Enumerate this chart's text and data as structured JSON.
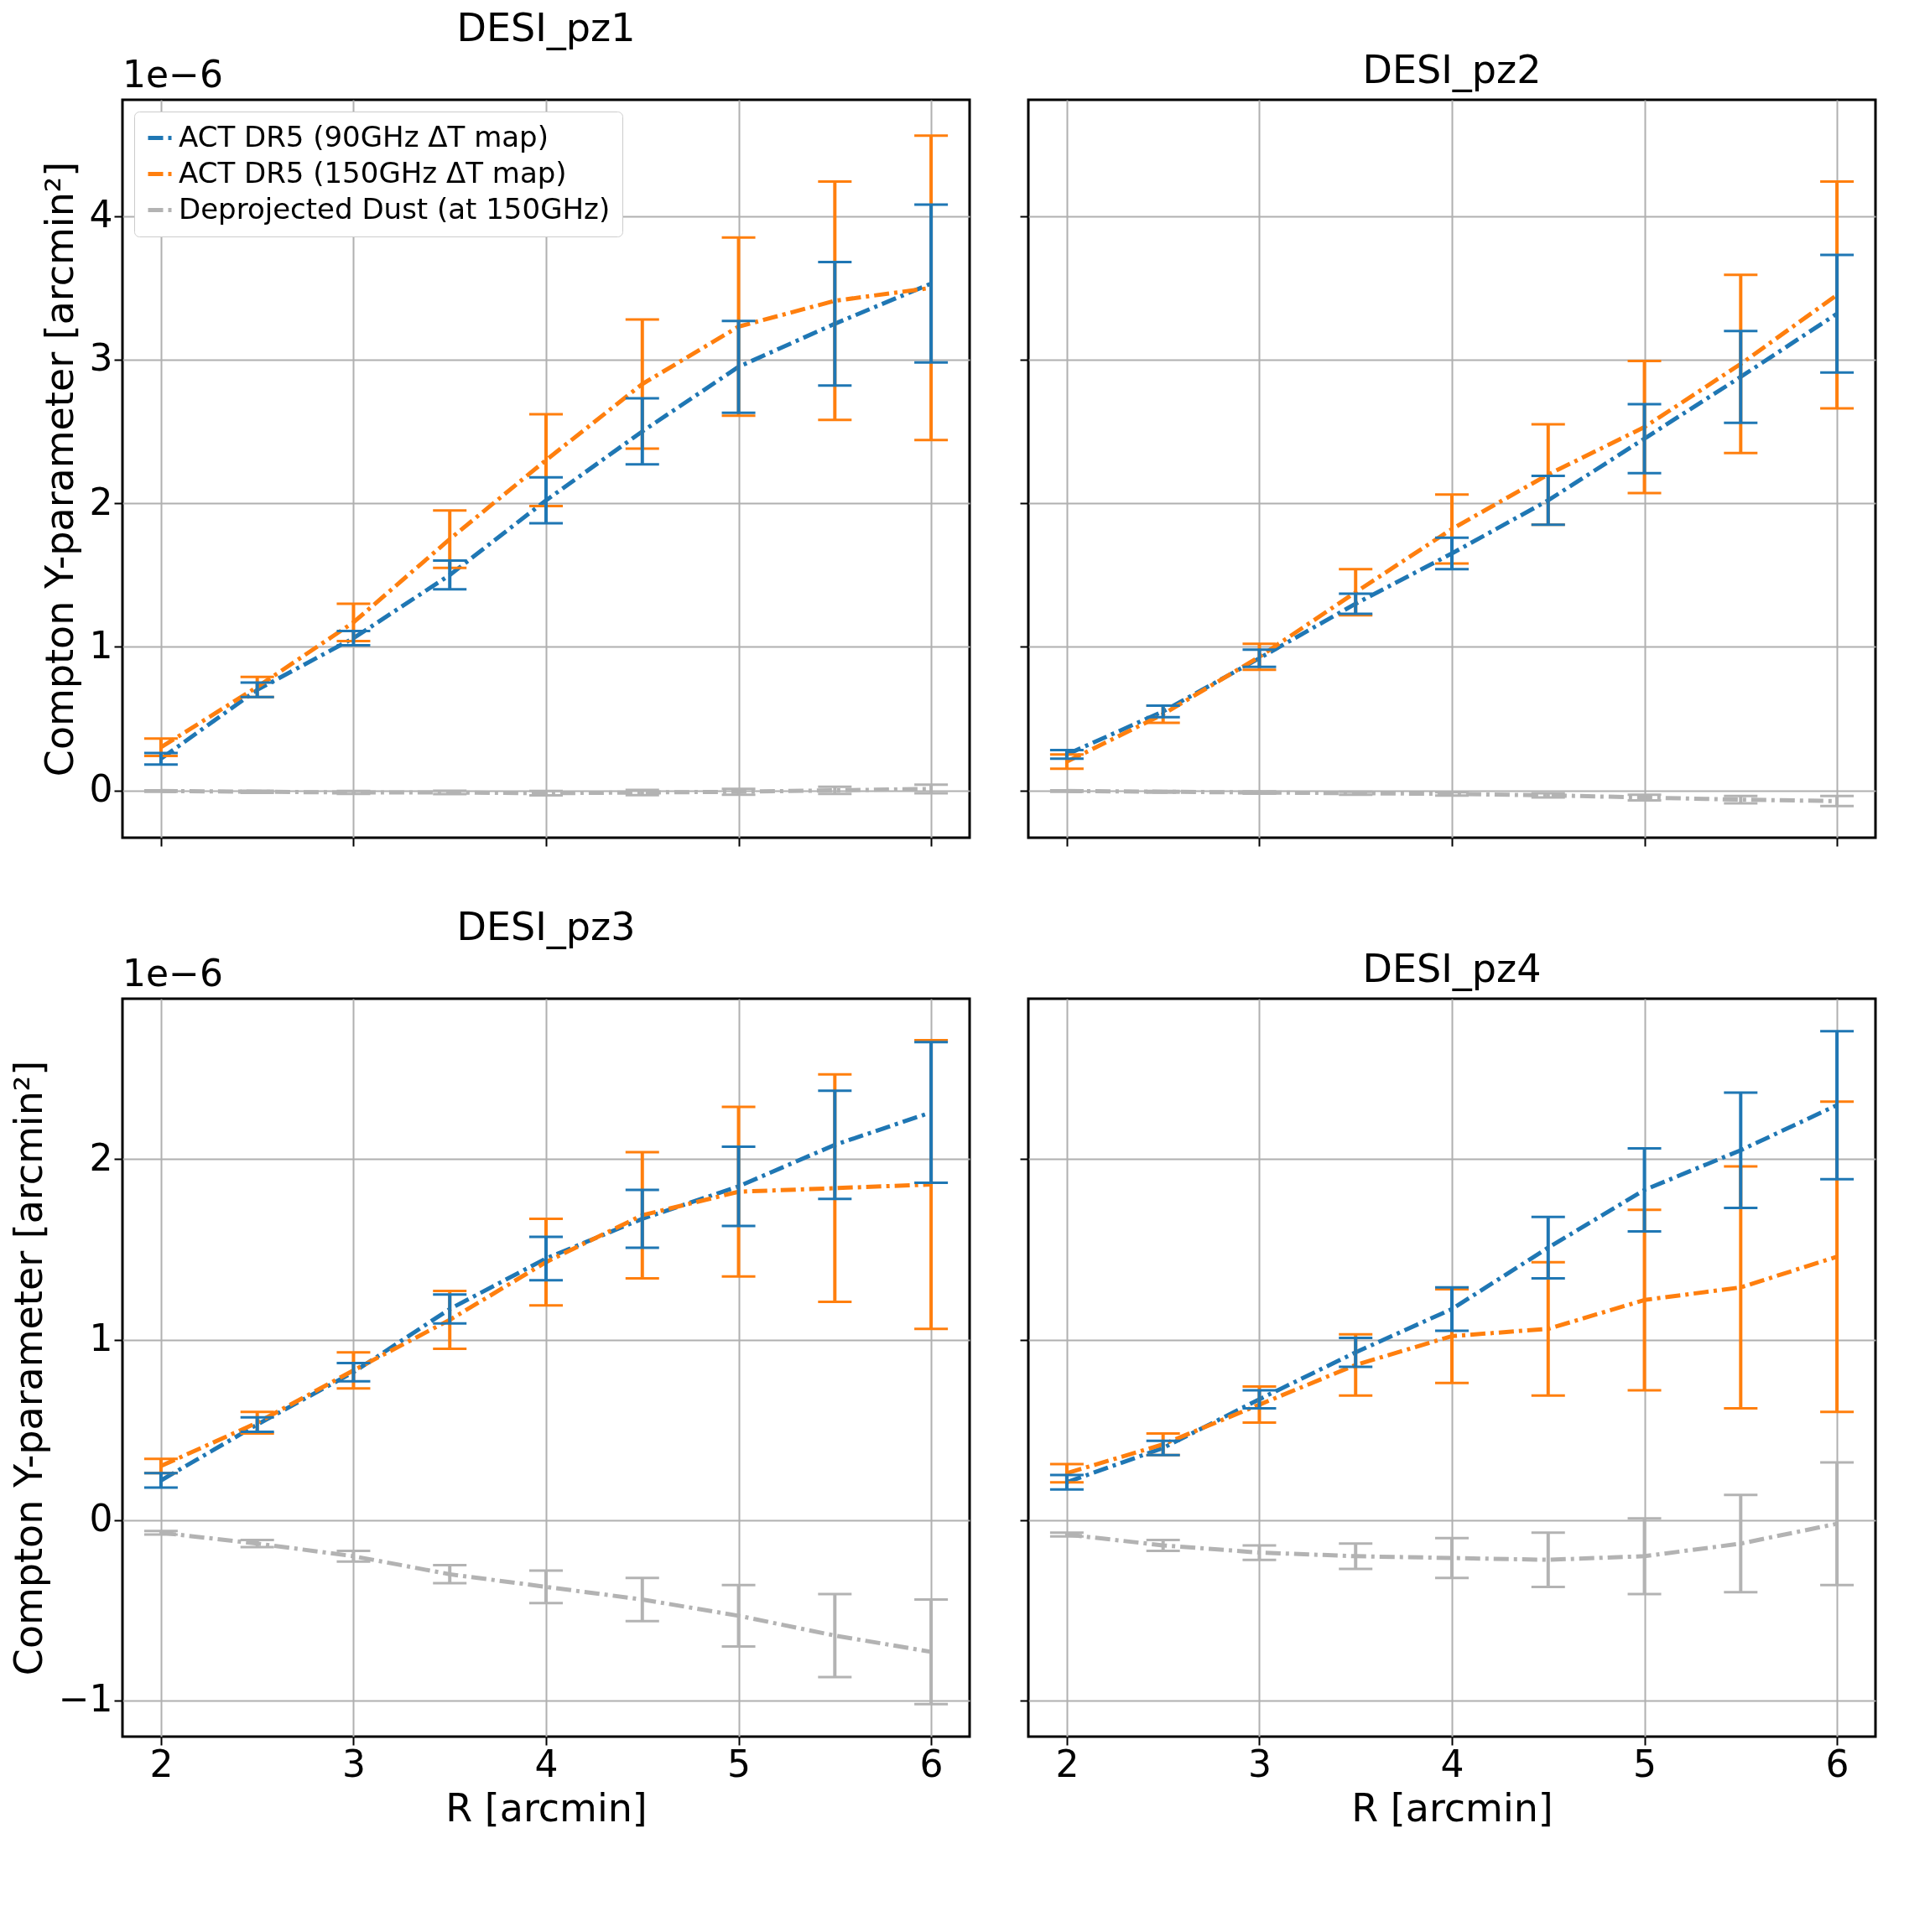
{
  "chart_data": [
    {
      "type": "line",
      "title": "DESI_pz1",
      "ylabel": "Compton Y-parameter [arcmin²]",
      "annotations": [
        "1e−6"
      ],
      "x": [
        2,
        2.5,
        3,
        3.5,
        4,
        4.5,
        5,
        5.5,
        6
      ],
      "xlim": [
        1.8,
        6.2
      ],
      "xticks": [
        2,
        3,
        4,
        5,
        6
      ],
      "ylim": [
        -0.33,
        4.81
      ],
      "yticks": [
        0,
        1,
        2,
        3,
        4
      ],
      "grid": true,
      "legend": "top left",
      "tick_labels": "y",
      "line_style": "dashed",
      "series": [
        {
          "name": "ACT DR5 (90GHz ΔT map)",
          "color": "#1f77b4",
          "values": [
            0.22,
            0.7,
            1.06,
            1.5,
            2.02,
            2.5,
            2.95,
            3.25,
            3.53
          ],
          "errors": [
            0.04,
            0.05,
            0.05,
            0.1,
            0.16,
            0.23,
            0.32,
            0.43,
            0.55
          ]
        },
        {
          "name": "ACT DR5 (150GHz ΔT map)",
          "color": "#ff7f0e",
          "values": [
            0.3,
            0.72,
            1.17,
            1.75,
            2.3,
            2.83,
            3.23,
            3.41,
            3.5
          ],
          "errors": [
            0.06,
            0.07,
            0.13,
            0.2,
            0.32,
            0.45,
            0.62,
            0.83,
            1.06
          ]
        },
        {
          "name": "Deprojected Dust (at 150GHz)",
          "color": "#b3b3b3",
          "values": [
            -0.005,
            -0.01,
            -0.015,
            -0.015,
            -0.02,
            -0.015,
            -0.01,
            0.0,
            0.01
          ],
          "errors": [
            0.005,
            0.007,
            0.01,
            0.012,
            0.015,
            0.018,
            0.02,
            0.025,
            0.03
          ]
        }
      ]
    },
    {
      "type": "line",
      "title": "DESI_pz2",
      "x": [
        2,
        2.5,
        3,
        3.5,
        4,
        4.5,
        5,
        5.5,
        6
      ],
      "xlim": [
        1.8,
        6.2
      ],
      "xticks": [
        2,
        3,
        4,
        5,
        6
      ],
      "ylim": [
        -0.33,
        4.81
      ],
      "yticks": [
        0,
        1,
        2,
        3,
        4
      ],
      "grid": true,
      "tick_labels": false,
      "line_style": "dashed",
      "series": [
        {
          "color": "#1f77b4",
          "values": [
            0.25,
            0.55,
            0.92,
            1.3,
            1.65,
            2.02,
            2.45,
            2.88,
            3.32
          ],
          "errors": [
            0.03,
            0.04,
            0.06,
            0.07,
            0.11,
            0.17,
            0.24,
            0.32,
            0.41
          ]
        },
        {
          "color": "#ff7f0e",
          "values": [
            0.2,
            0.53,
            0.93,
            1.38,
            1.82,
            2.2,
            2.53,
            2.97,
            3.45
          ],
          "errors": [
            0.05,
            0.06,
            0.09,
            0.16,
            0.24,
            0.35,
            0.46,
            0.62,
            0.79
          ]
        },
        {
          "color": "#b3b3b3",
          "values": [
            -0.005,
            -0.01,
            -0.015,
            -0.02,
            -0.025,
            -0.035,
            -0.05,
            -0.065,
            -0.075
          ],
          "errors": [
            0.005,
            0.006,
            0.008,
            0.01,
            0.012,
            0.015,
            0.02,
            0.025,
            0.035
          ]
        }
      ]
    },
    {
      "type": "line",
      "title": "DESI_pz3",
      "xlabel": "R [arcmin]",
      "ylabel": "Compton Y-parameter [arcmin²]",
      "annotations": [
        "1e−6"
      ],
      "x": [
        2,
        2.5,
        3,
        3.5,
        4,
        4.5,
        5,
        5.5,
        6
      ],
      "xlim": [
        1.8,
        6.2
      ],
      "xticks": [
        2,
        3,
        4,
        5,
        6
      ],
      "ylim": [
        -1.2,
        2.89
      ],
      "yticks": [
        -1,
        0,
        1,
        2
      ],
      "grid": true,
      "line_style": "dashed",
      "series": [
        {
          "color": "#1f77b4",
          "values": [
            0.22,
            0.53,
            0.82,
            1.17,
            1.45,
            1.67,
            1.85,
            2.08,
            2.26
          ],
          "errors": [
            0.04,
            0.04,
            0.05,
            0.08,
            0.12,
            0.16,
            0.22,
            0.3,
            0.39
          ]
        },
        {
          "color": "#ff7f0e",
          "values": [
            0.3,
            0.54,
            0.83,
            1.11,
            1.43,
            1.69,
            1.82,
            1.84,
            1.86
          ],
          "errors": [
            0.04,
            0.06,
            0.1,
            0.16,
            0.24,
            0.35,
            0.47,
            0.63,
            0.8
          ]
        },
        {
          "color": "#b3b3b3",
          "values": [
            -0.07,
            -0.13,
            -0.2,
            -0.3,
            -0.37,
            -0.44,
            -0.53,
            -0.64,
            -0.73
          ],
          "errors": [
            0.01,
            0.02,
            0.03,
            0.05,
            0.09,
            0.12,
            0.17,
            0.23,
            0.29
          ]
        }
      ]
    },
    {
      "type": "line",
      "title": "DESI_pz4",
      "xlabel": "R [arcmin]",
      "x": [
        2,
        2.5,
        3,
        3.5,
        4,
        4.5,
        5,
        5.5,
        6
      ],
      "xlim": [
        1.8,
        6.2
      ],
      "xticks": [
        2,
        3,
        4,
        5,
        6
      ],
      "ylim": [
        -1.2,
        2.89
      ],
      "yticks": [
        -1,
        0,
        1,
        2
      ],
      "grid": true,
      "tick_labels": "x",
      "line_style": "dashed",
      "series": [
        {
          "color": "#1f77b4",
          "values": [
            0.21,
            0.4,
            0.67,
            0.93,
            1.17,
            1.51,
            1.83,
            2.05,
            2.3
          ],
          "errors": [
            0.04,
            0.04,
            0.05,
            0.08,
            0.12,
            0.17,
            0.23,
            0.32,
            0.41
          ]
        },
        {
          "color": "#ff7f0e",
          "values": [
            0.26,
            0.42,
            0.64,
            0.86,
            1.02,
            1.06,
            1.22,
            1.29,
            1.46
          ],
          "errors": [
            0.05,
            0.06,
            0.1,
            0.17,
            0.26,
            0.37,
            0.5,
            0.67,
            0.86
          ]
        },
        {
          "color": "#b3b3b3",
          "values": [
            -0.08,
            -0.14,
            -0.18,
            -0.2,
            -0.21,
            -0.22,
            -0.2,
            -0.13,
            -0.02
          ],
          "errors": [
            0.01,
            0.03,
            0.04,
            0.07,
            0.11,
            0.15,
            0.21,
            0.27,
            0.34
          ]
        }
      ]
    }
  ]
}
